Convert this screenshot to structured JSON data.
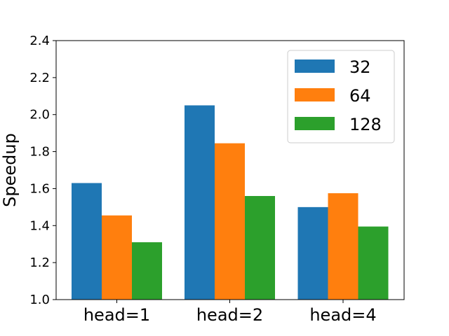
{
  "chart_data": {
    "type": "bar",
    "categories": [
      "head=1",
      "head=2",
      "head=4"
    ],
    "series": [
      {
        "name": "32",
        "values": [
          1.63,
          2.05,
          1.5
        ],
        "color": "#1f77b4"
      },
      {
        "name": "64",
        "values": [
          1.455,
          1.845,
          1.575
        ],
        "color": "#ff7f0e"
      },
      {
        "name": "128",
        "values": [
          1.31,
          1.56,
          1.395
        ],
        "color": "#2ca02c"
      }
    ],
    "ylabel": "Speedup",
    "xlabel": "",
    "title": "",
    "ylim": [
      1.0,
      2.4
    ],
    "yticks": [
      1.0,
      1.2,
      1.4,
      1.6,
      1.8,
      2.0,
      2.2,
      2.4
    ],
    "ytick_labels": [
      "1.0",
      "1.2",
      "1.4",
      "1.6",
      "1.8",
      "2.0",
      "2.2",
      "2.4"
    ],
    "grid": false,
    "legend_position": "top-right"
  }
}
